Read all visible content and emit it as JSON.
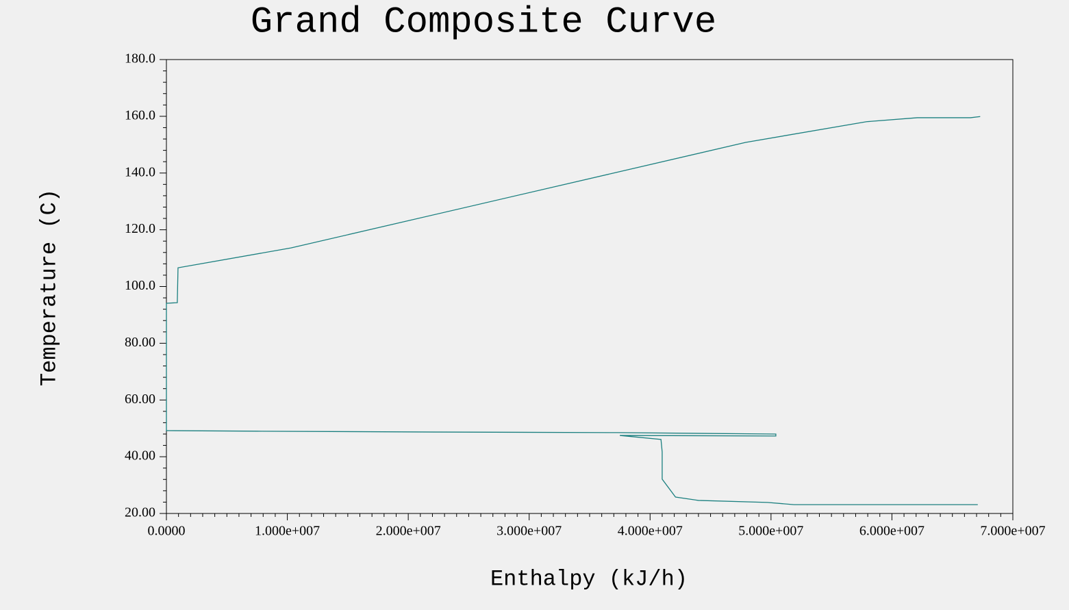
{
  "chart_data": {
    "type": "line",
    "title": "Grand Composite Curve",
    "x_label": "Enthalpy (kJ/h)",
    "y_label": "Temperature (C)",
    "x": [
      67300000,
      66500000,
      62100000,
      57900000,
      47900000,
      10300000,
      960000,
      900000,
      0,
      0,
      7500000,
      22500000,
      37200000,
      50400000,
      50400000,
      37500000,
      40900000,
      41000000,
      41000000,
      42100000,
      44000000,
      49700000,
      51900000,
      67100000
    ],
    "values": [
      159.9,
      159.5,
      159.5,
      158.1,
      150.8,
      113.6,
      106.6,
      94.3,
      94.1,
      49.2,
      49.0,
      48.7,
      48.5,
      48.0,
      47.3,
      47.5,
      46.1,
      41.7,
      32.1,
      25.8,
      24.6,
      23.9,
      23.1,
      23.1
    ],
    "color": "#1a7f7f",
    "xlim": [
      0,
      70000000
    ],
    "xticks": [
      {
        "value": 0,
        "label": "0.0000"
      },
      {
        "value": 10000000,
        "label": "1.000e+007"
      },
      {
        "value": 20000000,
        "label": "2.000e+007"
      },
      {
        "value": 30000000,
        "label": "3.000e+007"
      },
      {
        "value": 40000000,
        "label": "4.000e+007"
      },
      {
        "value": 50000000,
        "label": "5.000e+007"
      },
      {
        "value": 60000000,
        "label": "6.000e+007"
      },
      {
        "value": 70000000,
        "label": "7.000e+007"
      }
    ],
    "ylim": [
      20,
      180
    ],
    "yticks": [
      {
        "value": 20,
        "label": "20.00"
      },
      {
        "value": 40,
        "label": "40.00"
      },
      {
        "value": 60,
        "label": "60.00"
      },
      {
        "value": 80,
        "label": "80.00"
      },
      {
        "value": 100,
        "label": "100.0"
      },
      {
        "value": 120,
        "label": "120.0"
      },
      {
        "value": 140,
        "label": "140.0"
      },
      {
        "value": 160,
        "label": "160.0"
      },
      {
        "value": 180,
        "label": "180.0"
      }
    ]
  }
}
